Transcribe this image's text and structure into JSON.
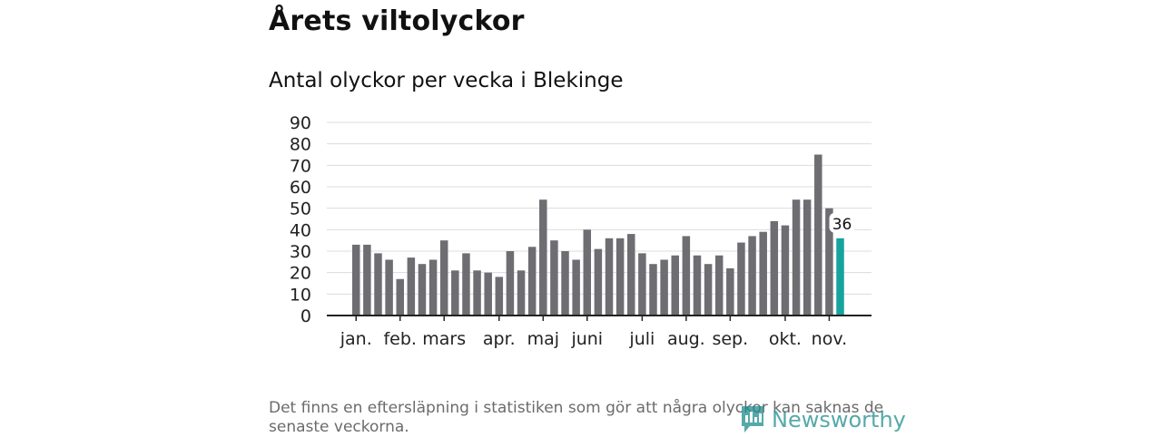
{
  "header": {
    "title": "Årets viltolyckor",
    "subtitle": "Antal olyckor per vecka i Blekinge"
  },
  "footer": {
    "note": "Det finns en eftersläpning i statistiken som gör att några olyckor kan saknas de senaste veckorna.",
    "brand": "Newsworthy"
  },
  "colors": {
    "bar": "#6e6d72",
    "highlight": "#16a39e",
    "grid": "#dcdcdc",
    "axis": "#222222",
    "brand": "#1e8d8d"
  },
  "chart_data": {
    "type": "bar",
    "title": "Antal olyckor per vecka i Blekinge",
    "xlabel": "",
    "ylabel": "",
    "ylim": [
      0,
      90
    ],
    "yticks": [
      0,
      10,
      20,
      30,
      40,
      50,
      60,
      70,
      80,
      90
    ],
    "grid": true,
    "values": [
      33,
      33,
      29,
      26,
      17,
      27,
      24,
      26,
      35,
      21,
      29,
      21,
      20,
      18,
      30,
      21,
      32,
      54,
      35,
      30,
      26,
      40,
      31,
      36,
      36,
      38,
      29,
      24,
      26,
      28,
      37,
      28,
      24,
      28,
      22,
      34,
      37,
      39,
      44,
      42,
      54,
      54,
      75,
      50,
      36
    ],
    "month_ticks": [
      {
        "label": "jan.",
        "week": 1
      },
      {
        "label": "feb.",
        "week": 5
      },
      {
        "label": "mars",
        "week": 9
      },
      {
        "label": "apr.",
        "week": 14
      },
      {
        "label": "maj",
        "week": 18
      },
      {
        "label": "juni",
        "week": 22
      },
      {
        "label": "juli",
        "week": 27
      },
      {
        "label": "aug.",
        "week": 31
      },
      {
        "label": "sep.",
        "week": 35
      },
      {
        "label": "okt.",
        "week": 40
      },
      {
        "label": "nov.",
        "week": 44
      }
    ],
    "highlight_index": 44,
    "highlight_label": "36"
  }
}
